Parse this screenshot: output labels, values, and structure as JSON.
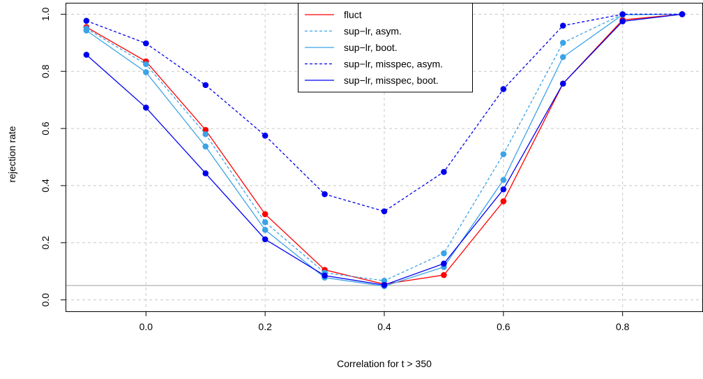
{
  "chart_data": {
    "type": "line",
    "xlabel": "Correlation for t > 350",
    "ylabel": "rejection rate",
    "xlim": [
      -0.135,
      0.935
    ],
    "ylim": [
      -0.04,
      1.04
    ],
    "x_ticks": [
      "0.0",
      "0.2",
      "0.4",
      "0.6",
      "0.8"
    ],
    "y_ticks": [
      "0.0",
      "0.2",
      "0.4",
      "0.6",
      "0.8",
      "1.0"
    ],
    "grid": true,
    "reference_line": {
      "y": 0.05,
      "color": "#bebebe"
    },
    "legend_position": "top-center",
    "x": [
      -0.1,
      0.0,
      0.1,
      0.2,
      0.3,
      0.4,
      0.5,
      0.6,
      0.7,
      0.8,
      0.9
    ],
    "series": [
      {
        "name": "fluct",
        "color": "#ff0000",
        "dashed": false,
        "values": [
          0.955,
          0.835,
          0.595,
          0.3,
          0.105,
          0.055,
          0.087,
          0.345,
          0.757,
          0.98,
          1.0
        ]
      },
      {
        "name": "sup−lr, asym.",
        "color": "#3ba3e6",
        "dashed": true,
        "values": [
          0.95,
          0.825,
          0.58,
          0.272,
          0.095,
          0.067,
          0.163,
          0.51,
          0.9,
          1.0,
          1.0
        ]
      },
      {
        "name": "sup−lr, boot.",
        "color": "#3ba3e6",
        "dashed": false,
        "values": [
          0.943,
          0.797,
          0.537,
          0.245,
          0.078,
          0.048,
          0.115,
          0.42,
          0.85,
          0.998,
          1.0
        ]
      },
      {
        "name": "sup−lr, misspec, asym.",
        "color": "#0000ee",
        "dashed": true,
        "values": [
          0.977,
          0.898,
          0.752,
          0.575,
          0.37,
          0.31,
          0.448,
          0.738,
          0.96,
          1.0,
          1.0
        ]
      },
      {
        "name": "sup−lr, misspec, boot.",
        "color": "#0000ee",
        "dashed": false,
        "values": [
          0.858,
          0.673,
          0.443,
          0.212,
          0.085,
          0.052,
          0.127,
          0.387,
          0.757,
          0.975,
          1.0
        ]
      }
    ]
  }
}
